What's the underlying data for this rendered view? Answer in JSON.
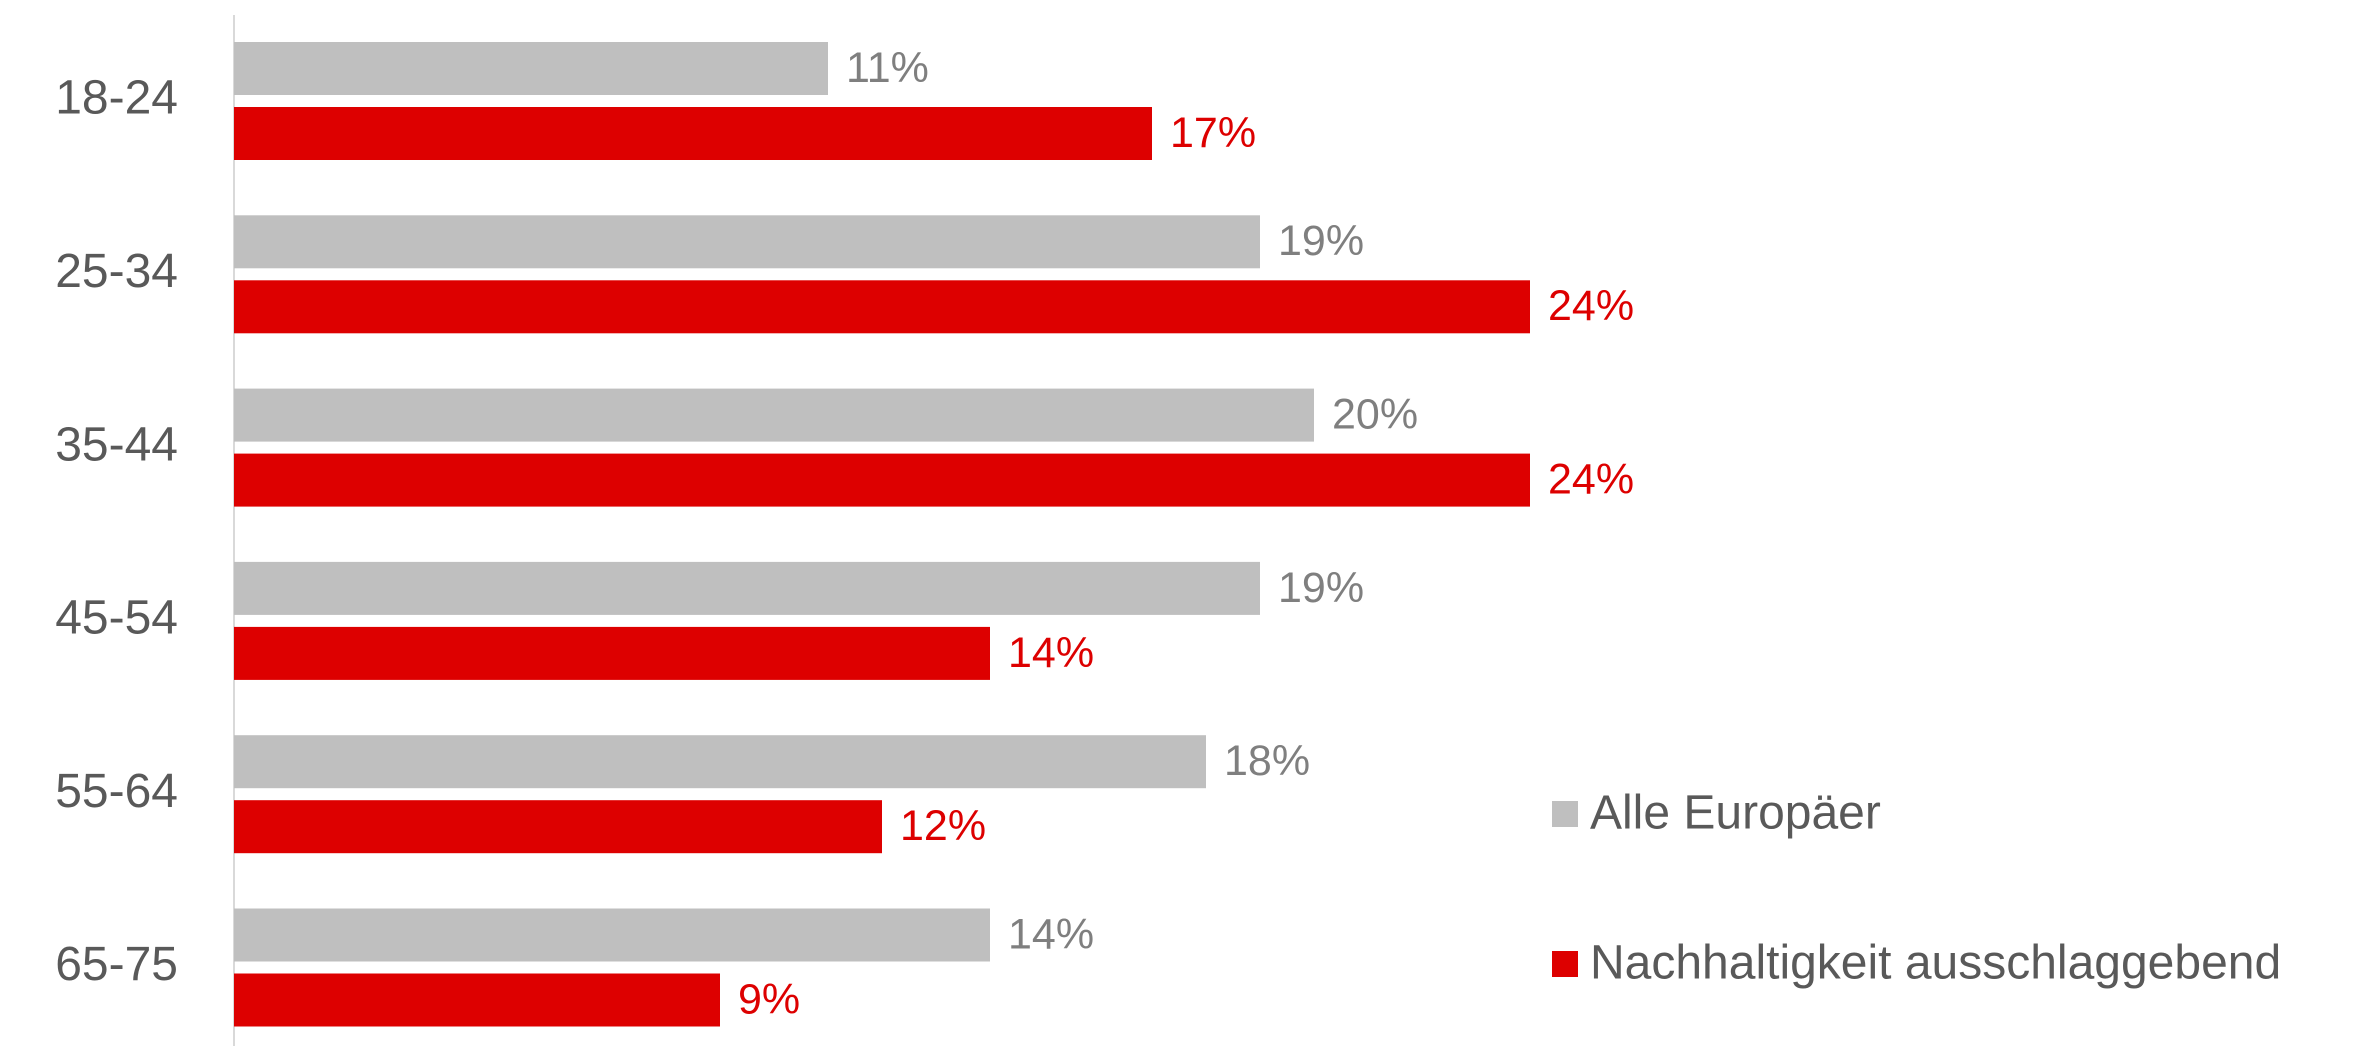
{
  "chart_data": {
    "type": "bar",
    "orientation": "horizontal",
    "categories": [
      "18-24",
      "25-34",
      "35-44",
      "45-54",
      "55-64",
      "65-75"
    ],
    "series": [
      {
        "name": "Alle Europäer",
        "color": "#bfbfbf",
        "label_color": "#7f7f7f",
        "values": [
          11,
          19,
          20,
          19,
          18,
          14
        ],
        "value_labels": [
          "11%",
          "19%",
          "20%",
          "19%",
          "18%",
          "14%"
        ]
      },
      {
        "name": "Nachhaltigkeit ausschlaggebend",
        "color": "#dd0000",
        "label_color": "#dd0000",
        "values": [
          17,
          24,
          24,
          14,
          12,
          9
        ],
        "value_labels": [
          "17%",
          "24%",
          "24%",
          "14%",
          "12%",
          "9%"
        ]
      }
    ],
    "legend": "lower right"
  }
}
